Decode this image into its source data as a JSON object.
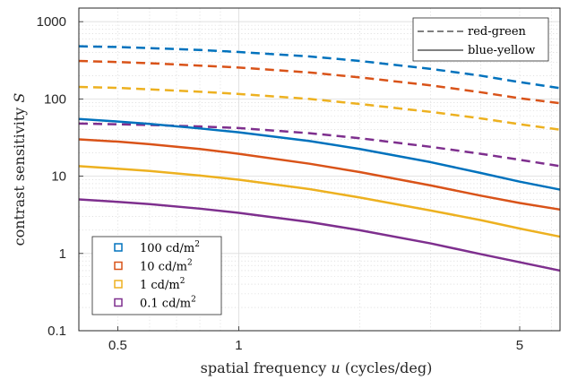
{
  "chart_data": {
    "type": "line",
    "xscale": "log",
    "yscale": "log",
    "xlim": [
      0.4,
      6.3
    ],
    "ylim": [
      0.1,
      1500
    ],
    "grid": true,
    "xticks": [
      0.5,
      1,
      5
    ],
    "xtick_labels": [
      "0.5",
      "1",
      "5"
    ],
    "yticks": [
      0.1,
      1,
      10,
      100,
      1000
    ],
    "ytick_labels": [
      "0.1",
      "1",
      "10",
      "100",
      "1000"
    ],
    "xlabel": {
      "text": "spatial frequency ",
      "var": "u",
      "suffix": " (cycles/deg)"
    },
    "ylabel": {
      "text": "contrast sensitivity ",
      "var": "S"
    },
    "x": [
      0.4,
      0.5,
      0.6,
      0.8,
      1.0,
      1.5,
      2.0,
      3.0,
      4.0,
      5.0,
      6.3
    ],
    "style_legend": {
      "placement": "top-right",
      "entries": [
        {
          "label": "red-green",
          "dash": "dashed"
        },
        {
          "label": "blue-yellow",
          "dash": "solid"
        }
      ]
    },
    "color_legend": {
      "placement": "bottom-left",
      "entries": [
        {
          "label": "100 cd/m",
          "sup": "2",
          "color": "#0072BD"
        },
        {
          "label": "10 cd/m",
          "sup": "2",
          "color": "#D95319"
        },
        {
          "label": "1 cd/m",
          "sup": "2",
          "color": "#EDB120"
        },
        {
          "label": "0.1 cd/m",
          "sup": "2",
          "color": "#7E2F8E"
        }
      ]
    },
    "series": [
      {
        "luminance": "100 cd/m2",
        "channel": "red-green",
        "dash": "dashed",
        "color": "#0072BD",
        "values": [
          480,
          470,
          455,
          430,
          405,
          355,
          310,
          245,
          200,
          165,
          138
        ]
      },
      {
        "luminance": "10 cd/m2",
        "channel": "red-green",
        "dash": "dashed",
        "color": "#D95319",
        "values": [
          310,
          300,
          290,
          270,
          255,
          220,
          190,
          150,
          122,
          102,
          88
        ]
      },
      {
        "luminance": "1 cd/m2",
        "channel": "red-green",
        "dash": "dashed",
        "color": "#EDB120",
        "values": [
          143,
          139,
          133,
          124,
          116,
          100,
          86,
          68,
          56,
          47,
          40
        ]
      },
      {
        "luminance": "0.1 cd/m2",
        "channel": "red-green",
        "dash": "dashed",
        "color": "#7E2F8E",
        "values": [
          48,
          47,
          46,
          44,
          42,
          36,
          31,
          24,
          19.5,
          16.3,
          13.5
        ]
      },
      {
        "luminance": "100 cd/m2",
        "channel": "blue-yellow",
        "dash": "solid",
        "color": "#0072BD",
        "values": [
          55,
          51,
          47.5,
          41.5,
          37,
          28.5,
          22.5,
          15.2,
          11,
          8.5,
          6.7
        ]
      },
      {
        "luminance": "10 cd/m2",
        "channel": "blue-yellow",
        "dash": "solid",
        "color": "#D95319",
        "values": [
          30,
          28,
          26,
          22.5,
          19.5,
          14.5,
          11.3,
          7.6,
          5.6,
          4.5,
          3.7
        ]
      },
      {
        "luminance": "1 cd/m2",
        "channel": "blue-yellow",
        "dash": "solid",
        "color": "#EDB120",
        "values": [
          13.5,
          12.5,
          11.7,
          10.2,
          9.0,
          6.8,
          5.3,
          3.6,
          2.7,
          2.1,
          1.65
        ]
      },
      {
        "luminance": "0.1 cd/m2",
        "channel": "blue-yellow",
        "dash": "solid",
        "color": "#7E2F8E",
        "values": [
          5.0,
          4.65,
          4.35,
          3.8,
          3.35,
          2.55,
          2.0,
          1.35,
          0.98,
          0.77,
          0.6
        ]
      }
    ]
  }
}
